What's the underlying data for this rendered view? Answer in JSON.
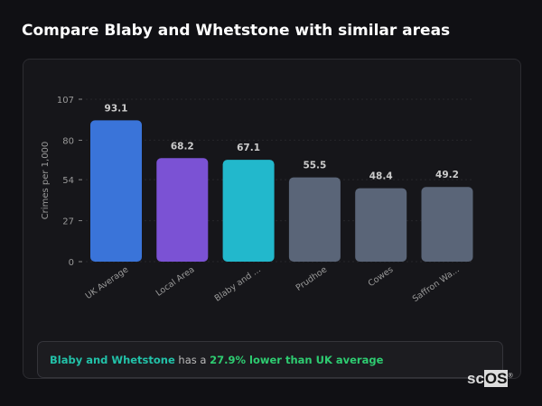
{
  "title": "Compare Blaby and Whetstone with similar areas",
  "chart_data": {
    "type": "bar",
    "ylabel": "Crimes per 1,000",
    "ylim": [
      0,
      107
    ],
    "yticks": [
      0,
      27,
      54,
      80,
      107
    ],
    "categories": [
      "UK Average",
      "Local Area",
      "Blaby and ...",
      "Prudhoe",
      "Cowes",
      "Saffron Wa..."
    ],
    "values": [
      93.1,
      68.2,
      67.1,
      55.5,
      48.4,
      49.2
    ],
    "value_labels": [
      "93.1",
      "68.2",
      "67.1",
      "55.5",
      "48.4",
      "49.2"
    ],
    "colors": [
      "#3a74d9",
      "#7b52d4",
      "#22b8cc",
      "#5a6578",
      "#5a6578",
      "#5a6578"
    ],
    "grid": true
  },
  "summary": {
    "area": "Blaby and Whetstone",
    "mid": " has a ",
    "result": "27.9% lower than UK average"
  },
  "logo": {
    "text_a": "sc",
    "text_b": "OS",
    "mark": "®"
  }
}
